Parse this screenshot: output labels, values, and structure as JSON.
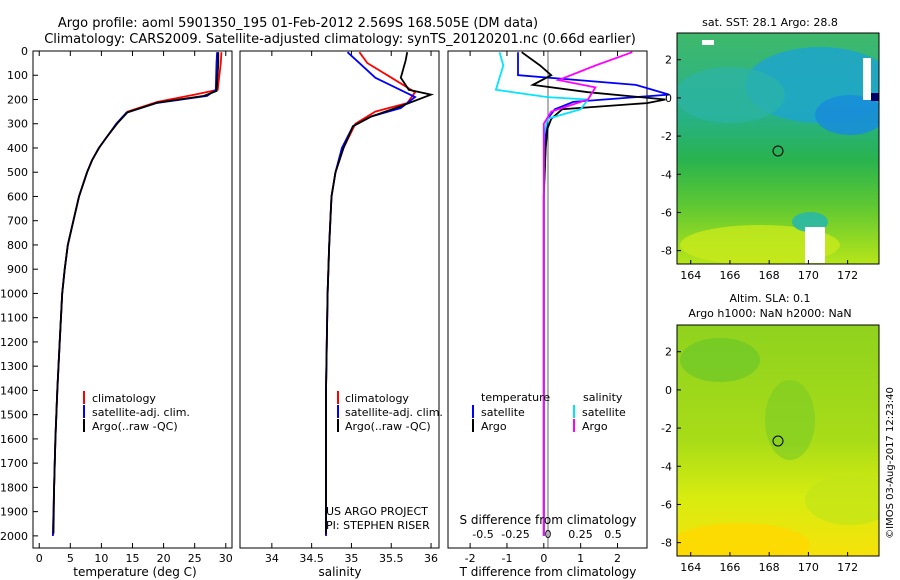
{
  "header": {
    "line1": "Argo profile: aoml 5901350_195 01-Feb-2012 2.569S 168.505E (DM data)",
    "line2": "Climatology: CARS2009. Satellite-adjusted climatology: synTS_20120201.nc (0.66d earlier)"
  },
  "colors": {
    "climatology": "#ff0000",
    "satellite": "#0000ff",
    "argo": "#000000",
    "argo_raw": "#000000",
    "t_satellite": "#0000ff",
    "t_argo": "#000000",
    "s_satellite": "#00e5ff",
    "s_argo": "#ff00ff"
  },
  "panels": {
    "temperature": {
      "xlabel": "temperature (deg C)",
      "legend": [
        "climatology",
        "satellite-adj. clim.",
        "Argo(..raw -QC)"
      ]
    },
    "salinity": {
      "xlabel": "salinity",
      "legend": [
        "climatology",
        "satellite-adj. clim.",
        "Argo(..raw -QC)"
      ],
      "credit1": "US ARGO PROJECT",
      "credit2": "PI: STEPHEN RISER"
    },
    "difference": {
      "top_label": "S difference from climatology",
      "xlabel": "T difference from climatology",
      "legend_heading_t": "temperature",
      "legend_heading_s": "salinity",
      "legend_t": [
        "satellite",
        "Argo"
      ],
      "legend_s": [
        "satellite",
        "Argo"
      ]
    },
    "sst_map": {
      "title": "sat. SST: 28.1 Argo: 28.8"
    },
    "sla_map": {
      "title1": "Altim. SLA: 0.1",
      "title2": "Argo h1000: NaN h2000: NaN"
    }
  },
  "side_label": "©IMOS 03-Aug-2017 12:23:40",
  "chart_data": [
    {
      "type": "line",
      "name": "temperature",
      "xlim": [
        -1,
        31
      ],
      "ylim": [
        2050,
        0
      ],
      "xticks": [
        0,
        5,
        10,
        15,
        20,
        25,
        30
      ],
      "yticks": [
        0,
        100,
        200,
        300,
        400,
        500,
        600,
        700,
        800,
        900,
        1000,
        1100,
        1200,
        1300,
        1400,
        1500,
        1600,
        1700,
        1800,
        1900,
        2000
      ],
      "series": [
        {
          "name": "climatology",
          "color": "#ff0000",
          "x": [
            29.3,
            29.2,
            28.7,
            25.0,
            19.0,
            14.2,
            12.5,
            11.0,
            9.6,
            8.5,
            7.7,
            6.4,
            5.5,
            4.6,
            4.1,
            3.7,
            3.3,
            2.9,
            2.6,
            2.4,
            2.2
          ],
          "y": [
            5,
            50,
            160,
            180,
            210,
            250,
            300,
            350,
            400,
            450,
            500,
            600,
            700,
            800,
            900,
            1000,
            1200,
            1400,
            1600,
            1800,
            2000
          ]
        },
        {
          "name": "satellite-adj. clim.",
          "color": "#0000ff",
          "x": [
            28.6,
            28.5,
            28.4,
            27.0,
            18.8,
            14.0,
            12.4,
            11.0,
            9.6,
            8.5,
            7.7,
            6.4,
            5.5,
            4.6,
            4.1,
            3.7,
            3.3,
            2.9,
            2.6,
            2.4,
            2.2
          ],
          "y": [
            5,
            50,
            160,
            185,
            215,
            255,
            300,
            350,
            400,
            450,
            500,
            600,
            700,
            800,
            900,
            1000,
            1200,
            1400,
            1600,
            1800,
            2000
          ]
        },
        {
          "name": "Argo(..raw -QC)",
          "color": "#000000",
          "x": [
            28.8,
            28.8,
            28.5,
            26.5,
            19.0,
            14.2,
            12.5,
            11.0,
            9.6,
            8.5,
            7.7,
            6.4,
            5.5,
            4.6,
            4.1,
            3.7,
            3.3,
            2.9,
            2.6,
            2.4,
            2.3
          ],
          "y": [
            5,
            50,
            165,
            185,
            213,
            253,
            300,
            350,
            400,
            450,
            500,
            600,
            700,
            800,
            900,
            1000,
            1200,
            1400,
            1600,
            1800,
            1990
          ]
        }
      ]
    },
    {
      "type": "line",
      "name": "salinity",
      "xlim": [
        33.6,
        36.1
      ],
      "ylim": [
        2050,
        0
      ],
      "xticks": [
        34,
        34.5,
        35,
        35.5,
        36
      ],
      "series": [
        {
          "name": "climatology",
          "color": "#ff0000",
          "x": [
            35.1,
            35.2,
            35.45,
            35.8,
            35.7,
            35.3,
            35.05,
            34.9,
            34.8,
            34.75,
            34.72,
            34.7,
            34.69,
            34.68,
            34.68,
            34.68,
            34.68,
            34.68
          ],
          "y": [
            5,
            50,
            100,
            170,
            215,
            250,
            300,
            400,
            500,
            600,
            800,
            1000,
            1200,
            1400,
            1600,
            1800,
            1900,
            2000
          ]
        },
        {
          "name": "satellite-adj. clim.",
          "color": "#0000ff",
          "x": [
            34.95,
            35.1,
            35.3,
            35.8,
            35.62,
            35.25,
            35.02,
            34.88,
            34.8,
            34.75,
            34.72,
            34.7,
            34.69,
            34.68,
            34.68,
            34.68,
            34.68,
            34.68
          ],
          "y": [
            5,
            50,
            110,
            190,
            235,
            270,
            310,
            400,
            500,
            600,
            800,
            1000,
            1200,
            1400,
            1600,
            1800,
            1900,
            2000
          ]
        },
        {
          "name": "Argo(..raw -QC)",
          "color": "#000000",
          "x": [
            35.7,
            35.68,
            35.62,
            35.72,
            36.0,
            35.6,
            35.25,
            35.02,
            34.9,
            34.8,
            34.75,
            34.72,
            34.7,
            34.69,
            34.68,
            34.68,
            34.68,
            34.68
          ],
          "y": [
            5,
            40,
            110,
            160,
            180,
            230,
            270,
            310,
            400,
            500,
            600,
            800,
            1000,
            1200,
            1400,
            1600,
            1800,
            1990
          ]
        }
      ]
    },
    {
      "type": "line",
      "name": "difference",
      "xlim": [
        -2.6,
        2.8
      ],
      "ylim": [
        2050,
        0
      ],
      "xticks_bottom": [
        -2,
        -1,
        0,
        1,
        2
      ],
      "xticks_top": [
        -0.5,
        -0.25,
        0,
        0.25,
        0.5
      ],
      "series": [
        {
          "name": "temperature satellite",
          "color": "#0000ff",
          "x": [
            -0.7,
            -0.7,
            2.5,
            3.4,
            0.8,
            0.3,
            0.1,
            0.05,
            0.02,
            0,
            0,
            0,
            0
          ],
          "y": [
            5,
            100,
            140,
            180,
            210,
            240,
            280,
            350,
            450,
            600,
            1000,
            1500,
            2000
          ]
        },
        {
          "name": "temperature Argo",
          "color": "#000000",
          "x": [
            -0.6,
            -0.1,
            0.2,
            -0.3,
            1.2,
            3.3,
            2.8,
            0.5,
            0.2,
            0.1,
            0.05,
            0,
            0,
            0,
            0
          ],
          "y": [
            5,
            60,
            100,
            140,
            170,
            200,
            215,
            240,
            280,
            320,
            400,
            600,
            1000,
            1500,
            2000
          ]
        },
        {
          "name": "salinity satellite",
          "color": "#00e5ff",
          "x": [
            -1.2,
            -1.1,
            -1.3,
            0.1,
            1.2,
            1.0,
            0.1,
            0,
            0,
            0,
            0,
            0
          ],
          "y": [
            5,
            60,
            160,
            190,
            200,
            240,
            280,
            350,
            600,
            1000,
            1500,
            2000
          ]
        },
        {
          "name": "salinity Argo",
          "color": "#ff00ff",
          "x": [
            2.4,
            1.4,
            0.4,
            1.4,
            1.2,
            0.2,
            0,
            0,
            0,
            0,
            0
          ],
          "y": [
            5,
            60,
            120,
            150,
            200,
            250,
            300,
            600,
            1000,
            1500,
            2000
          ]
        }
      ]
    },
    {
      "type": "heatmap",
      "name": "sat. SST map",
      "xticks": [
        164,
        166,
        168,
        170,
        172
      ],
      "yticks": [
        2,
        0,
        -2,
        -4,
        -6,
        -8
      ],
      "xlim": [
        163.3,
        173.6
      ],
      "ylim": [
        -8.7,
        3.4
      ],
      "marker": {
        "lon": 168.5,
        "lat": -2.57
      }
    },
    {
      "type": "heatmap",
      "name": "Altim. SLA map",
      "xticks": [
        164,
        166,
        168,
        170,
        172
      ],
      "yticks": [
        2,
        0,
        -2,
        -4,
        -6,
        -8
      ],
      "xlim": [
        163.3,
        173.6
      ],
      "ylim": [
        -8.7,
        3.4
      ],
      "marker": {
        "lon": 168.5,
        "lat": -2.57
      }
    }
  ]
}
